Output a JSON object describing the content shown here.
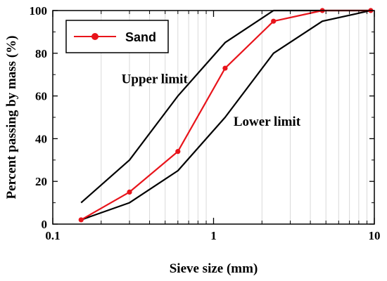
{
  "chart_data": {
    "type": "line",
    "xscale": "log",
    "xlim": [
      0.1,
      10
    ],
    "ylim": [
      0,
      100
    ],
    "xticks": [
      0.1,
      1,
      10
    ],
    "xtick_labels": [
      "0.1",
      "1",
      "10"
    ],
    "yticks": [
      0,
      20,
      40,
      60,
      80,
      100
    ],
    "ytick_labels": [
      "0",
      "20",
      "40",
      "60",
      "80",
      "100"
    ],
    "xlabel": "Sieve size (mm)",
    "ylabel": "Percent passing by mass (%)",
    "grid": "vertical minor log gridlines",
    "legend_position": "top-left",
    "series": [
      {
        "name": "Sand",
        "color": "#e8141b",
        "marker": "circle",
        "x": [
          0.15,
          0.3,
          0.6,
          1.18,
          2.36,
          4.75,
          9.5
        ],
        "y": [
          2,
          15,
          34,
          73,
          95,
          100,
          100
        ]
      },
      {
        "color": "#000000",
        "x": [
          0.15,
          0.3,
          0.6,
          1.18,
          2.36,
          4.75,
          9.5
        ],
        "y": [
          10,
          30,
          60,
          85,
          100,
          100,
          100
        ]
      },
      {
        "color": "#000000",
        "x": [
          0.15,
          0.3,
          0.6,
          1.18,
          2.36,
          4.75,
          9.5
        ],
        "y": [
          2,
          10,
          25,
          50,
          80,
          95,
          100
        ]
      }
    ],
    "annotations": [
      {
        "text": "Upper limit",
        "x": 0.43,
        "y": 68
      },
      {
        "text": "Lower limit",
        "x": 2.15,
        "y": 48
      }
    ]
  }
}
